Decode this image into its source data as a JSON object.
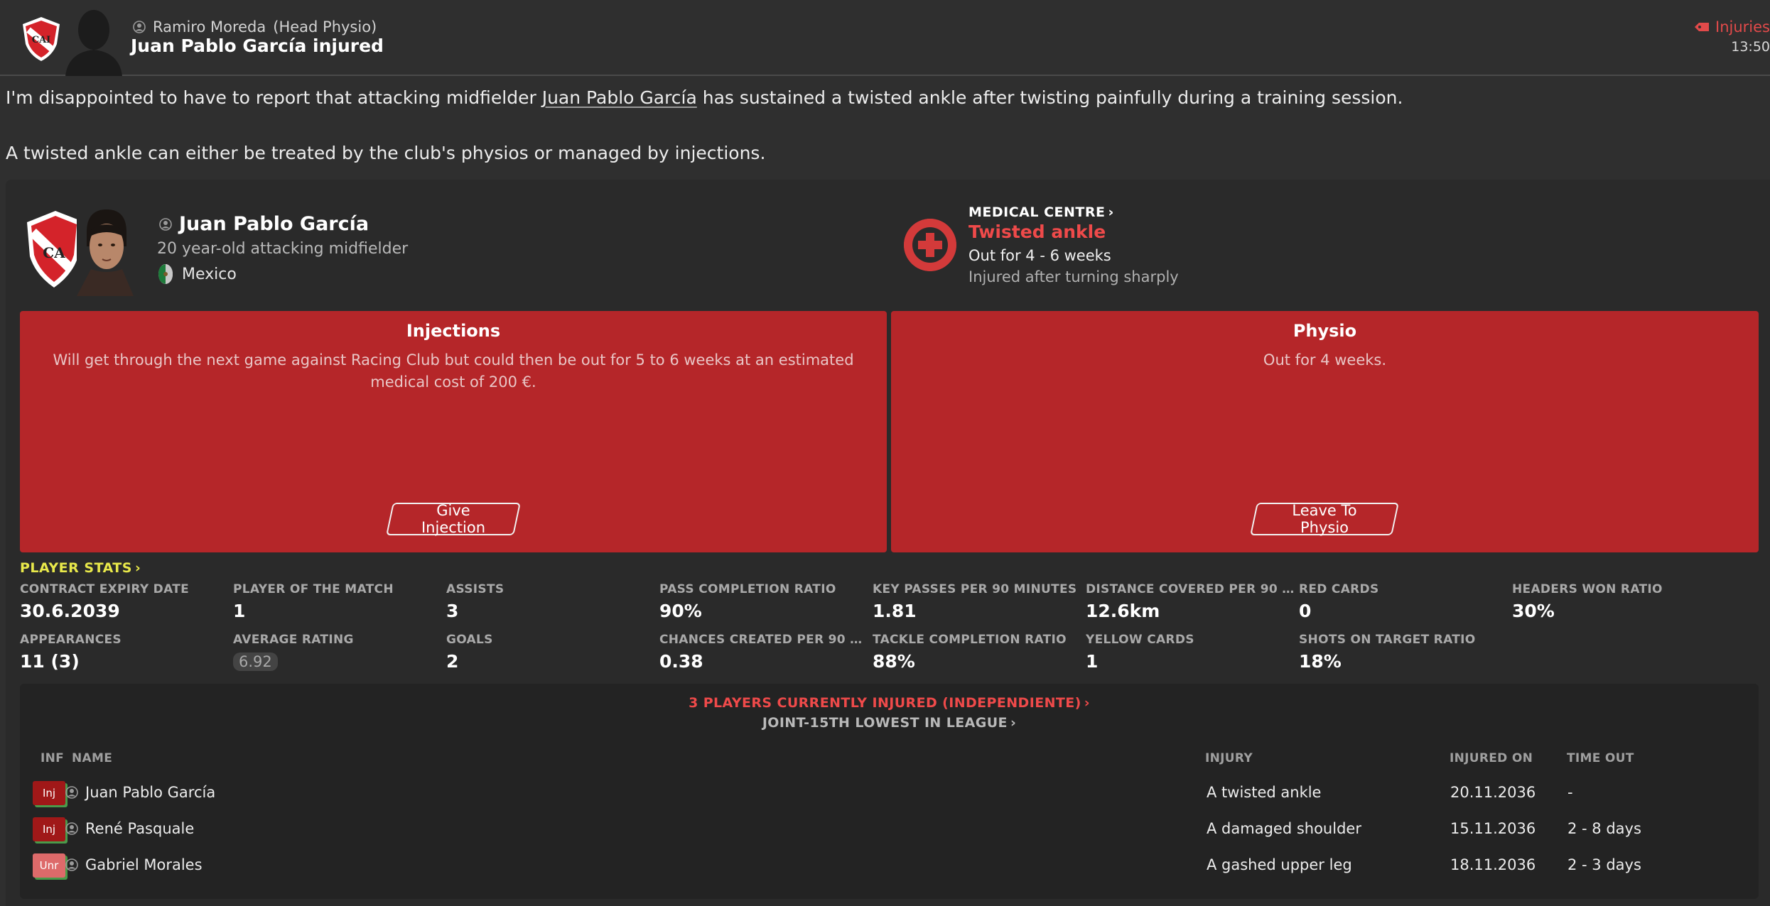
{
  "header": {
    "sender_name": "Ramiro Moreda",
    "sender_role": "(Head Physio)",
    "subject": "Juan Pablo García injured",
    "tag": "Injuries",
    "time": "13:50"
  },
  "message": {
    "para1_before": "I'm disappointed to have to report that attacking midfielder ",
    "para1_link": "Juan Pablo García",
    "para1_after": " has sustained a twisted ankle after twisting painfully during a training session.",
    "para2": "A twisted ankle can either be treated by the club's physios or managed by injections."
  },
  "player": {
    "name": "Juan Pablo García",
    "description": "20 year-old attacking midfielder",
    "nationality": "Mexico"
  },
  "medical": {
    "title": "MEDICAL CENTRE",
    "injury": "Twisted ankle",
    "out_for": "Out for 4 - 6 weeks",
    "note": "Injured after turning sharply"
  },
  "options": {
    "injections": {
      "title": "Injections",
      "text": "Will get through the next game against Racing Club but could then be out for 5 to 6 weeks at an estimated medical cost of 200 €.",
      "button": "Give Injection"
    },
    "physio": {
      "title": "Physio",
      "text": "Out for 4 weeks.",
      "button": "Leave To Physio"
    }
  },
  "stats": {
    "heading": "PLAYER STATS",
    "items": [
      {
        "label": "CONTRACT EXPIRY DATE",
        "value": "30.6.2039"
      },
      {
        "label": "PLAYER OF THE MATCH",
        "value": "1"
      },
      {
        "label": "ASSISTS",
        "value": "3"
      },
      {
        "label": "PASS COMPLETION RATIO",
        "value": "90%"
      },
      {
        "label": "KEY PASSES PER 90 MINUTES",
        "value": "1.81"
      },
      {
        "label": "DISTANCE COVERED PER 90 MI...",
        "value": "12.6km"
      },
      {
        "label": "RED CARDS",
        "value": "0"
      },
      {
        "label": "HEADERS WON RATIO",
        "value": "30%"
      },
      {
        "label": "APPEARANCES",
        "value": "11 (3)"
      },
      {
        "label": "AVERAGE RATING",
        "value": "6.92"
      },
      {
        "label": "GOALS",
        "value": "2"
      },
      {
        "label": "CHANCES CREATED PER 90 MIN...",
        "value": "0.38"
      },
      {
        "label": "TACKLE COMPLETION RATIO",
        "value": "88%"
      },
      {
        "label": "YELLOW CARDS",
        "value": "1"
      },
      {
        "label": "SHOTS ON TARGET RATIO",
        "value": "18%"
      }
    ]
  },
  "injury_list": {
    "heading": "3 PLAYERS CURRENTLY INJURED (INDEPENDIENTE)",
    "subheading": "JOINT-15TH LOWEST IN LEAGUE",
    "columns": {
      "inf": "INF",
      "name": "NAME",
      "injury": "INJURY",
      "injured_on": "INJURED ON",
      "time_out": "TIME OUT"
    },
    "rows": [
      {
        "badge": "Inj",
        "name": "Juan Pablo García",
        "injury": "A twisted ankle",
        "injured_on": "20.11.2036",
        "time_out": "-"
      },
      {
        "badge": "Inj",
        "name": "René Pasquale",
        "injury": "A damaged shoulder",
        "injured_on": "15.11.2036",
        "time_out": "2 - 8 days"
      },
      {
        "badge": "Unr",
        "name": "Gabriel Morales",
        "injury": "A gashed upper leg",
        "injured_on": "18.11.2036",
        "time_out": "2 - 3 days"
      }
    ]
  }
}
